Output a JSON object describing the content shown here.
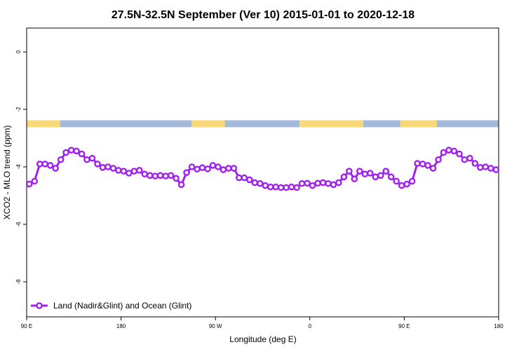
{
  "chart_data": {
    "type": "line",
    "title": "27.5N-32.5N September (Ver 10)   2015-01-01 to 2020-12-18",
    "x_label": "Longitude (deg E)",
    "y_label": "XCO2 - MLO trend (ppm)",
    "xlim": [
      90,
      540
    ],
    "xticks": [
      {
        "value": 90,
        "label": "90 E"
      },
      180,
      {
        "value": 270,
        "label": "90 W"
      },
      {
        "value": 360,
        "label": "0"
      },
      {
        "value": 450,
        "label": "90 E"
      },
      {
        "value": 540,
        "label": "180"
      }
    ],
    "ylim": [
      -9.22,
      0.83
    ],
    "yticks": [
      0,
      -2,
      -4,
      -6,
      -8
    ],
    "legend": "bottom-left",
    "strip": {
      "y": [
        -2.38,
        -2.62
      ],
      "ocean_color": "#a3b9da",
      "land_color": "#f8d878",
      "land_spans": [
        [
          90,
          122
        ],
        [
          247,
          279
        ],
        [
          350,
          411
        ],
        [
          446,
          481
        ]
      ]
    },
    "x": [
      92.5,
      97.5,
      102.5,
      107.5,
      112.5,
      117.5,
      122.5,
      127.5,
      132.5,
      137.5,
      142.5,
      147.5,
      152.5,
      157.5,
      162.5,
      167.5,
      172.5,
      177.5,
      182.5,
      187.5,
      192.5,
      197.5,
      202.5,
      207.5,
      212.5,
      217.5,
      222.5,
      227.5,
      232.5,
      237.5,
      242.5,
      247.5,
      252.5,
      257.5,
      262.5,
      267.5,
      272.5,
      277.5,
      282.5,
      287.5,
      292.5,
      297.5,
      302.5,
      307.5,
      312.5,
      317.5,
      322.5,
      327.5,
      332.5,
      337.5,
      342.5,
      347.5,
      352.5,
      357.5,
      362.5,
      367.5,
      372.5,
      377.5,
      382.5,
      387.5,
      392.5,
      397.5,
      402.5,
      407.5,
      412.5,
      417.5,
      422.5,
      427.5,
      432.5,
      437.5,
      442.5,
      447.5,
      452.5,
      457.5,
      462.5,
      467.5,
      472.5,
      477.5,
      482.5,
      487.5,
      492.5,
      497.5,
      502.5,
      507.5,
      512.5,
      517.5,
      522.5,
      527.5,
      532.5,
      537.5
    ],
    "series": [
      {
        "name": "Land (Nadir&Glint) and Ocean (Glint)",
        "color": "#a020f0",
        "values": [
          -4.6,
          -4.5,
          -3.9,
          -3.9,
          -3.95,
          -4.05,
          -3.75,
          -3.5,
          -3.42,
          -3.45,
          -3.55,
          -3.75,
          -3.7,
          -3.9,
          -4.02,
          -4.0,
          -4.05,
          -4.12,
          -4.15,
          -4.22,
          -4.15,
          -4.12,
          -4.25,
          -4.3,
          -4.32,
          -4.3,
          -4.32,
          -4.3,
          -4.4,
          -4.62,
          -4.2,
          -4.0,
          -4.08,
          -4.03,
          -4.07,
          -3.95,
          -4.0,
          -4.1,
          -4.05,
          -4.05,
          -4.38,
          -4.38,
          -4.45,
          -4.55,
          -4.58,
          -4.65,
          -4.7,
          -4.7,
          -4.72,
          -4.72,
          -4.7,
          -4.72,
          -4.58,
          -4.57,
          -4.65,
          -4.57,
          -4.55,
          -4.58,
          -4.62,
          -4.55,
          -4.35,
          -4.15,
          -4.42,
          -4.15,
          -4.25,
          -4.22,
          -4.35,
          -4.3,
          -4.15,
          -4.35,
          -4.5,
          -4.65,
          -4.6,
          -4.5,
          -3.88,
          -3.9,
          -3.95,
          -4.05,
          -3.75,
          -3.5,
          -3.42,
          -3.45,
          -3.55,
          -3.75,
          -3.7,
          -3.88,
          -4.02,
          -4.0,
          -4.05,
          -4.1
        ]
      }
    ]
  }
}
